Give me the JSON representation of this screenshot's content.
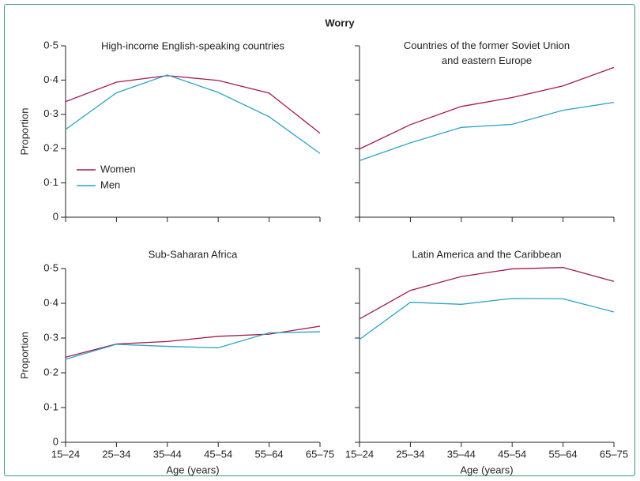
{
  "title": "Worry",
  "chart_data": [
    {
      "type": "line",
      "title": "High-income English-speaking countries",
      "ylabel": "Proportion",
      "ylim": [
        0,
        0.5
      ],
      "yticks": [
        0,
        {
          "value": 0.1,
          "label": "0·1"
        },
        {
          "value": 0.2,
          "label": "0·2"
        },
        {
          "value": 0.3,
          "label": "0·3"
        },
        {
          "value": 0.4,
          "label": "0·4"
        },
        {
          "value": 0.5,
          "label": "0·5"
        }
      ],
      "legend": "lower left",
      "series": [
        {
          "name": "Women",
          "color": "#a3194f",
          "values": [
            0.337,
            0.394,
            0.413,
            0.399,
            0.362,
            0.245
          ]
        },
        {
          "name": "Men",
          "color": "#2ba3c6",
          "values": [
            0.256,
            0.363,
            0.415,
            0.364,
            0.293,
            0.186
          ]
        }
      ]
    },
    {
      "type": "line",
      "title": "Countries of the former Soviet Union\nand eastern Europe",
      "ylim": [
        0,
        0.5
      ],
      "yticks": [
        0,
        0.1,
        0.2,
        0.3,
        0.4,
        0.5
      ],
      "ytick_labels": false,
      "series": [
        {
          "color": "#a3194f",
          "values": [
            0.199,
            0.27,
            0.323,
            0.349,
            0.383,
            0.437
          ]
        },
        {
          "color": "#2ba3c6",
          "values": [
            0.165,
            0.217,
            0.262,
            0.271,
            0.312,
            0.335
          ]
        }
      ]
    },
    {
      "type": "line",
      "title": "Sub-Saharan Africa",
      "ylabel": "Proportion",
      "xlabel": "Age (years)",
      "categories": [
        "15–24",
        "25–34",
        "35–44",
        "45–54",
        "55–64",
        "65–75"
      ],
      "ylim": [
        0,
        0.5
      ],
      "yticks": [
        0,
        {
          "value": 0.1,
          "label": "0·1"
        },
        {
          "value": 0.2,
          "label": "0·2"
        },
        {
          "value": 0.3,
          "label": "0·3"
        },
        {
          "value": 0.4,
          "label": "0·4"
        },
        {
          "value": 0.5,
          "label": "0·5"
        }
      ],
      "series": [
        {
          "color": "#a3194f",
          "values": [
            0.245,
            0.283,
            0.29,
            0.305,
            0.311,
            0.334
          ]
        },
        {
          "color": "#2ba3c6",
          "values": [
            0.239,
            0.282,
            0.276,
            0.272,
            0.315,
            0.318
          ]
        }
      ]
    },
    {
      "type": "line",
      "title": "Latin America and the Caribbean",
      "xlabel": "Age (years)",
      "categories": [
        "15–24",
        "25–34",
        "35–44",
        "45–54",
        "55–64",
        "65–75"
      ],
      "ylim": [
        0,
        0.5
      ],
      "yticks": [
        0,
        0.1,
        0.2,
        0.3,
        0.4,
        0.5
      ],
      "ytick_labels": false,
      "series": [
        {
          "color": "#a3194f",
          "values": [
            0.355,
            0.437,
            0.477,
            0.499,
            0.503,
            0.463
          ]
        },
        {
          "color": "#2ba3c6",
          "values": [
            0.296,
            0.403,
            0.397,
            0.414,
            0.413,
            0.375
          ]
        }
      ]
    }
  ]
}
